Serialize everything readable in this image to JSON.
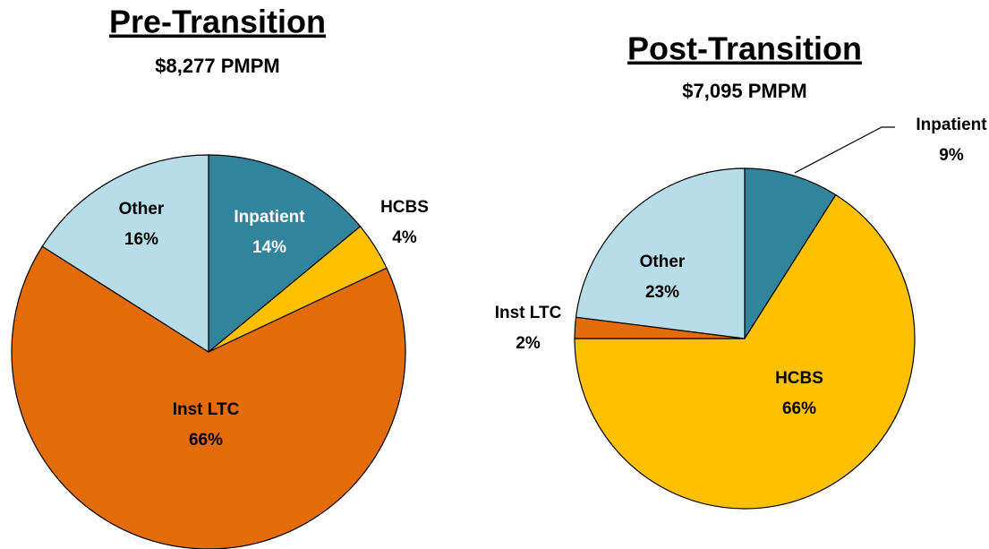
{
  "chart_data": [
    {
      "type": "pie",
      "title": "Pre-Transition",
      "subtitle": "$8,277 PMPM",
      "categories": [
        "Inpatient",
        "HCBS",
        "Inst LTC",
        "Other"
      ],
      "values": [
        14,
        4,
        66,
        16
      ],
      "value_labels": [
        "14%",
        "4%",
        "66%",
        "16%"
      ],
      "colors": [
        "#31849b",
        "#ffc000",
        "#e36c09",
        "#b7dde8"
      ]
    },
    {
      "type": "pie",
      "title": "Post-Transition",
      "subtitle": "$7,095 PMPM",
      "categories": [
        "Inpatient",
        "HCBS",
        "Inst LTC",
        "Other"
      ],
      "values": [
        9,
        66,
        2,
        23
      ],
      "value_labels": [
        "9%",
        "66%",
        "2%",
        "23%"
      ],
      "colors": [
        "#31849b",
        "#ffc000",
        "#e36c09",
        "#b7dde8"
      ]
    }
  ]
}
